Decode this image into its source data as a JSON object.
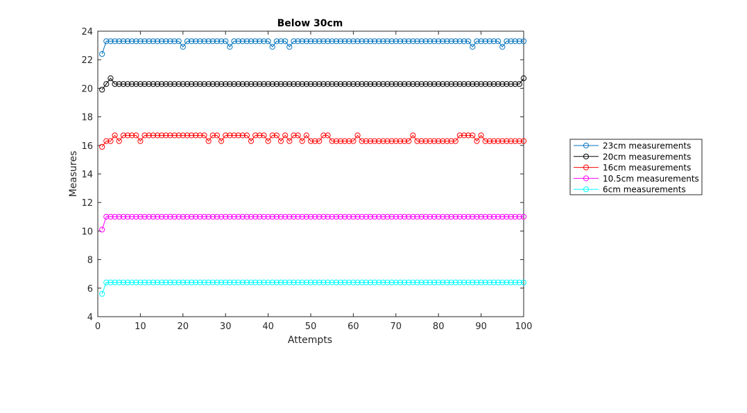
{
  "chart_data": {
    "type": "line",
    "title": "Below 30cm",
    "xlabel": "Attempts",
    "ylabel": "Measures",
    "xlim": [
      0,
      100
    ],
    "ylim": [
      4,
      24
    ],
    "xticks": [
      0,
      10,
      20,
      30,
      40,
      50,
      60,
      70,
      80,
      90,
      100
    ],
    "yticks": [
      4,
      6,
      8,
      10,
      12,
      14,
      16,
      18,
      20,
      22,
      24
    ],
    "grid": false,
    "legend_position": "outside-right",
    "marker": "circle",
    "series": [
      {
        "name": "23cm measurements",
        "color": "#0072BD",
        "x": [
          1,
          2,
          3,
          4,
          5,
          6,
          7,
          8,
          9,
          10,
          11,
          12,
          13,
          14,
          15,
          16,
          17,
          18,
          19,
          20,
          21,
          22,
          23,
          24,
          25,
          26,
          27,
          28,
          29,
          30,
          31,
          32,
          33,
          34,
          35,
          36,
          37,
          38,
          39,
          40,
          41,
          42,
          43,
          44,
          45,
          46,
          47,
          48,
          49,
          50,
          51,
          52,
          53,
          54,
          55,
          56,
          57,
          58,
          59,
          60,
          61,
          62,
          63,
          64,
          65,
          66,
          67,
          68,
          69,
          70,
          71,
          72,
          73,
          74,
          75,
          76,
          77,
          78,
          79,
          80,
          81,
          82,
          83,
          84,
          85,
          86,
          87,
          88,
          89,
          90,
          91,
          92,
          93,
          94,
          95,
          96,
          97,
          98,
          99,
          100
        ],
        "y": [
          22.4,
          23.3,
          23.3,
          23.3,
          23.3,
          23.3,
          23.3,
          23.3,
          23.3,
          23.3,
          23.3,
          23.3,
          23.3,
          23.3,
          23.3,
          23.3,
          23.3,
          23.3,
          23.3,
          22.9,
          23.3,
          23.3,
          23.3,
          23.3,
          23.3,
          23.3,
          23.3,
          23.3,
          23.3,
          23.3,
          22.9,
          23.3,
          23.3,
          23.3,
          23.3,
          23.3,
          23.3,
          23.3,
          23.3,
          23.3,
          22.9,
          23.3,
          23.3,
          23.3,
          22.9,
          23.3,
          23.3,
          23.3,
          23.3,
          23.3,
          23.3,
          23.3,
          23.3,
          23.3,
          23.3,
          23.3,
          23.3,
          23.3,
          23.3,
          23.3,
          23.3,
          23.3,
          23.3,
          23.3,
          23.3,
          23.3,
          23.3,
          23.3,
          23.3,
          23.3,
          23.3,
          23.3,
          23.3,
          23.3,
          23.3,
          23.3,
          23.3,
          23.3,
          23.3,
          23.3,
          23.3,
          23.3,
          23.3,
          23.3,
          23.3,
          23.3,
          23.3,
          22.9,
          23.3,
          23.3,
          23.3,
          23.3,
          23.3,
          23.3,
          22.9,
          23.3,
          23.3,
          23.3,
          23.3,
          23.3
        ]
      },
      {
        "name": "20cm measurements",
        "color": "#000000",
        "x": [
          1,
          2,
          3,
          4,
          5,
          6,
          7,
          8,
          9,
          10,
          11,
          12,
          13,
          14,
          15,
          16,
          17,
          18,
          19,
          20,
          21,
          22,
          23,
          24,
          25,
          26,
          27,
          28,
          29,
          30,
          31,
          32,
          33,
          34,
          35,
          36,
          37,
          38,
          39,
          40,
          41,
          42,
          43,
          44,
          45,
          46,
          47,
          48,
          49,
          50,
          51,
          52,
          53,
          54,
          55,
          56,
          57,
          58,
          59,
          60,
          61,
          62,
          63,
          64,
          65,
          66,
          67,
          68,
          69,
          70,
          71,
          72,
          73,
          74,
          75,
          76,
          77,
          78,
          79,
          80,
          81,
          82,
          83,
          84,
          85,
          86,
          87,
          88,
          89,
          90,
          91,
          92,
          93,
          94,
          95,
          96,
          97,
          98,
          99,
          100
        ],
        "y": [
          19.9,
          20.3,
          20.7,
          20.3,
          20.3,
          20.3,
          20.3,
          20.3,
          20.3,
          20.3,
          20.3,
          20.3,
          20.3,
          20.3,
          20.3,
          20.3,
          20.3,
          20.3,
          20.3,
          20.3,
          20.3,
          20.3,
          20.3,
          20.3,
          20.3,
          20.3,
          20.3,
          20.3,
          20.3,
          20.3,
          20.3,
          20.3,
          20.3,
          20.3,
          20.3,
          20.3,
          20.3,
          20.3,
          20.3,
          20.3,
          20.3,
          20.3,
          20.3,
          20.3,
          20.3,
          20.3,
          20.3,
          20.3,
          20.3,
          20.3,
          20.3,
          20.3,
          20.3,
          20.3,
          20.3,
          20.3,
          20.3,
          20.3,
          20.3,
          20.3,
          20.3,
          20.3,
          20.3,
          20.3,
          20.3,
          20.3,
          20.3,
          20.3,
          20.3,
          20.3,
          20.3,
          20.3,
          20.3,
          20.3,
          20.3,
          20.3,
          20.3,
          20.3,
          20.3,
          20.3,
          20.3,
          20.3,
          20.3,
          20.3,
          20.3,
          20.3,
          20.3,
          20.3,
          20.3,
          20.3,
          20.3,
          20.3,
          20.3,
          20.3,
          20.3,
          20.3,
          20.3,
          20.3,
          20.3,
          20.7
        ]
      },
      {
        "name": "16cm measurements",
        "color": "#FF0000",
        "x": [
          1,
          2,
          3,
          4,
          5,
          6,
          7,
          8,
          9,
          10,
          11,
          12,
          13,
          14,
          15,
          16,
          17,
          18,
          19,
          20,
          21,
          22,
          23,
          24,
          25,
          26,
          27,
          28,
          29,
          30,
          31,
          32,
          33,
          34,
          35,
          36,
          37,
          38,
          39,
          40,
          41,
          42,
          43,
          44,
          45,
          46,
          47,
          48,
          49,
          50,
          51,
          52,
          53,
          54,
          55,
          56,
          57,
          58,
          59,
          60,
          61,
          62,
          63,
          64,
          65,
          66,
          67,
          68,
          69,
          70,
          71,
          72,
          73,
          74,
          75,
          76,
          77,
          78,
          79,
          80,
          81,
          82,
          83,
          84,
          85,
          86,
          87,
          88,
          89,
          90,
          91,
          92,
          93,
          94,
          95,
          96,
          97,
          98,
          99,
          100
        ],
        "y": [
          15.9,
          16.3,
          16.3,
          16.7,
          16.3,
          16.7,
          16.7,
          16.7,
          16.7,
          16.3,
          16.7,
          16.7,
          16.7,
          16.7,
          16.7,
          16.7,
          16.7,
          16.7,
          16.7,
          16.7,
          16.7,
          16.7,
          16.7,
          16.7,
          16.7,
          16.3,
          16.7,
          16.7,
          16.3,
          16.7,
          16.7,
          16.7,
          16.7,
          16.7,
          16.7,
          16.3,
          16.7,
          16.7,
          16.7,
          16.3,
          16.7,
          16.7,
          16.3,
          16.7,
          16.3,
          16.7,
          16.7,
          16.3,
          16.7,
          16.3,
          16.3,
          16.3,
          16.7,
          16.7,
          16.3,
          16.3,
          16.3,
          16.3,
          16.3,
          16.3,
          16.7,
          16.3,
          16.3,
          16.3,
          16.3,
          16.3,
          16.3,
          16.3,
          16.3,
          16.3,
          16.3,
          16.3,
          16.3,
          16.7,
          16.3,
          16.3,
          16.3,
          16.3,
          16.3,
          16.3,
          16.3,
          16.3,
          16.3,
          16.3,
          16.7,
          16.7,
          16.7,
          16.7,
          16.3,
          16.7,
          16.3,
          16.3,
          16.3,
          16.3,
          16.3,
          16.3,
          16.3,
          16.3,
          16.3,
          16.3
        ]
      },
      {
        "name": "10.5cm measurements",
        "color": "#FF00FF",
        "x": [
          1,
          2,
          3,
          4,
          5,
          6,
          7,
          8,
          9,
          10,
          11,
          12,
          13,
          14,
          15,
          16,
          17,
          18,
          19,
          20,
          21,
          22,
          23,
          24,
          25,
          26,
          27,
          28,
          29,
          30,
          31,
          32,
          33,
          34,
          35,
          36,
          37,
          38,
          39,
          40,
          41,
          42,
          43,
          44,
          45,
          46,
          47,
          48,
          49,
          50,
          51,
          52,
          53,
          54,
          55,
          56,
          57,
          58,
          59,
          60,
          61,
          62,
          63,
          64,
          65,
          66,
          67,
          68,
          69,
          70,
          71,
          72,
          73,
          74,
          75,
          76,
          77,
          78,
          79,
          80,
          81,
          82,
          83,
          84,
          85,
          86,
          87,
          88,
          89,
          90,
          91,
          92,
          93,
          94,
          95,
          96,
          97,
          98,
          99,
          100
        ],
        "y": [
          10.1,
          11.0,
          11.0,
          11.0,
          11.0,
          11.0,
          11.0,
          11.0,
          11.0,
          11.0,
          11.0,
          11.0,
          11.0,
          11.0,
          11.0,
          11.0,
          11.0,
          11.0,
          11.0,
          11.0,
          11.0,
          11.0,
          11.0,
          11.0,
          11.0,
          11.0,
          11.0,
          11.0,
          11.0,
          11.0,
          11.0,
          11.0,
          11.0,
          11.0,
          11.0,
          11.0,
          11.0,
          11.0,
          11.0,
          11.0,
          11.0,
          11.0,
          11.0,
          11.0,
          11.0,
          11.0,
          11.0,
          11.0,
          11.0,
          11.0,
          11.0,
          11.0,
          11.0,
          11.0,
          11.0,
          11.0,
          11.0,
          11.0,
          11.0,
          11.0,
          11.0,
          11.0,
          11.0,
          11.0,
          11.0,
          11.0,
          11.0,
          11.0,
          11.0,
          11.0,
          11.0,
          11.0,
          11.0,
          11.0,
          11.0,
          11.0,
          11.0,
          11.0,
          11.0,
          11.0,
          11.0,
          11.0,
          11.0,
          11.0,
          11.0,
          11.0,
          11.0,
          11.0,
          11.0,
          11.0,
          11.0,
          11.0,
          11.0,
          11.0,
          11.0,
          11.0,
          11.0,
          11.0,
          11.0,
          11.0
        ]
      },
      {
        "name": "6cm measurements",
        "color": "#00FFFF",
        "x": [
          1,
          2,
          3,
          4,
          5,
          6,
          7,
          8,
          9,
          10,
          11,
          12,
          13,
          14,
          15,
          16,
          17,
          18,
          19,
          20,
          21,
          22,
          23,
          24,
          25,
          26,
          27,
          28,
          29,
          30,
          31,
          32,
          33,
          34,
          35,
          36,
          37,
          38,
          39,
          40,
          41,
          42,
          43,
          44,
          45,
          46,
          47,
          48,
          49,
          50,
          51,
          52,
          53,
          54,
          55,
          56,
          57,
          58,
          59,
          60,
          61,
          62,
          63,
          64,
          65,
          66,
          67,
          68,
          69,
          70,
          71,
          72,
          73,
          74,
          75,
          76,
          77,
          78,
          79,
          80,
          81,
          82,
          83,
          84,
          85,
          86,
          87,
          88,
          89,
          90,
          91,
          92,
          93,
          94,
          95,
          96,
          97,
          98,
          99,
          100
        ],
        "y": [
          5.6,
          6.4,
          6.4,
          6.4,
          6.4,
          6.4,
          6.4,
          6.4,
          6.4,
          6.4,
          6.4,
          6.4,
          6.4,
          6.4,
          6.4,
          6.4,
          6.4,
          6.4,
          6.4,
          6.4,
          6.4,
          6.4,
          6.4,
          6.4,
          6.4,
          6.4,
          6.4,
          6.4,
          6.4,
          6.4,
          6.4,
          6.4,
          6.4,
          6.4,
          6.4,
          6.4,
          6.4,
          6.4,
          6.4,
          6.4,
          6.4,
          6.4,
          6.4,
          6.4,
          6.4,
          6.4,
          6.4,
          6.4,
          6.4,
          6.4,
          6.4,
          6.4,
          6.4,
          6.4,
          6.4,
          6.4,
          6.4,
          6.4,
          6.4,
          6.4,
          6.4,
          6.4,
          6.4,
          6.4,
          6.4,
          6.4,
          6.4,
          6.4,
          6.4,
          6.4,
          6.4,
          6.4,
          6.4,
          6.4,
          6.4,
          6.4,
          6.4,
          6.4,
          6.4,
          6.4,
          6.4,
          6.4,
          6.4,
          6.4,
          6.4,
          6.4,
          6.4,
          6.4,
          6.4,
          6.4,
          6.4,
          6.4,
          6.4,
          6.4,
          6.4,
          6.4,
          6.4,
          6.4,
          6.4,
          6.4
        ]
      }
    ]
  }
}
